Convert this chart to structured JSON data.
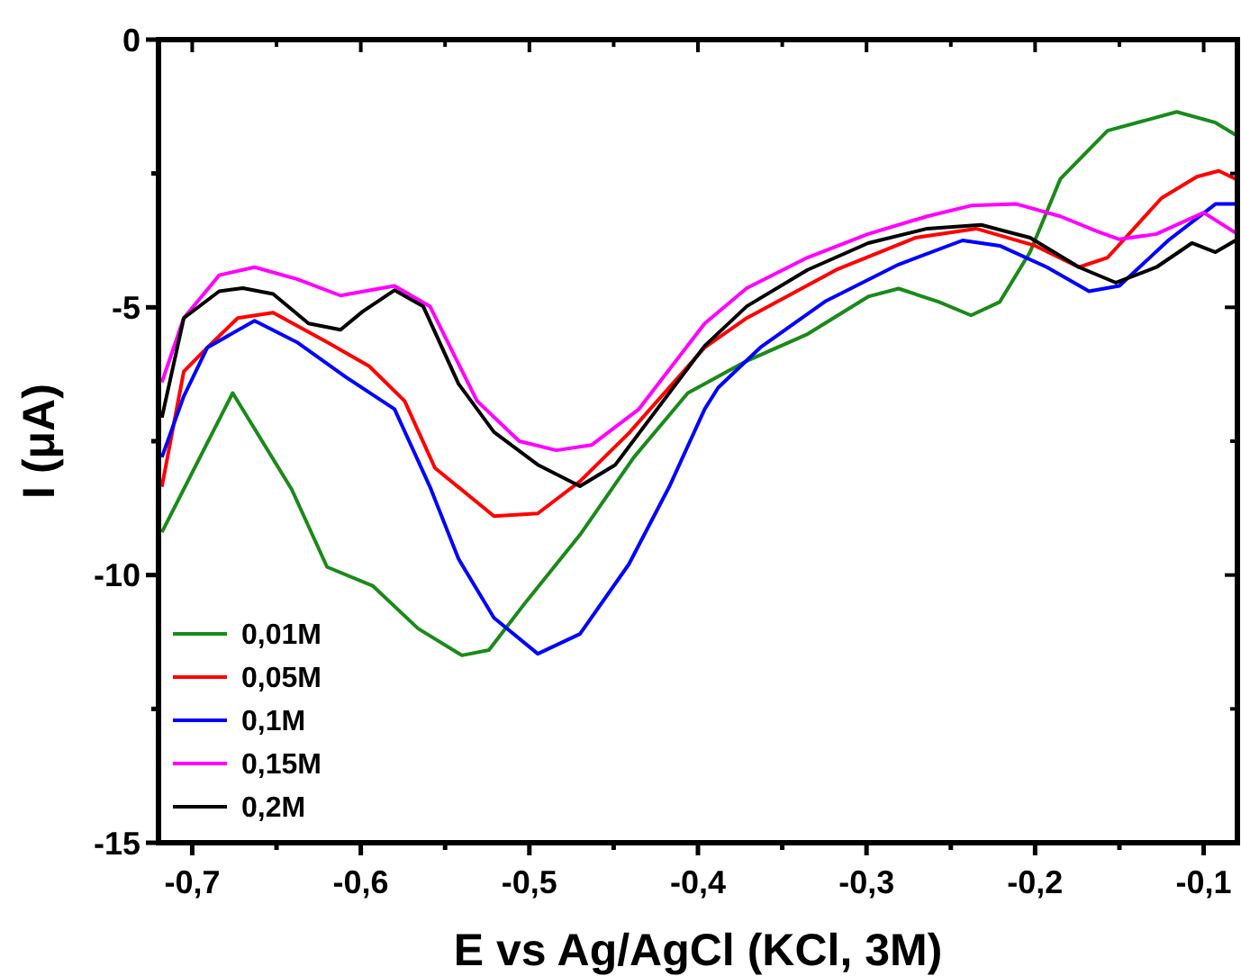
{
  "chart_data": {
    "type": "line",
    "xlabel": "E vs Ag/AgCl (KCl, 3M)",
    "ylabel": "I (μA)",
    "xlim": [
      -0.72,
      -0.08
    ],
    "ylim": [
      -15,
      0
    ],
    "xticks": [
      {
        "value": -0.7,
        "label": "-0,7"
      },
      {
        "value": -0.65,
        "label": null
      },
      {
        "value": -0.6,
        "label": "-0,6"
      },
      {
        "value": -0.55,
        "label": null
      },
      {
        "value": -0.5,
        "label": "-0,5"
      },
      {
        "value": -0.45,
        "label": null
      },
      {
        "value": -0.4,
        "label": "-0,4"
      },
      {
        "value": -0.35,
        "label": null
      },
      {
        "value": -0.3,
        "label": "-0,3"
      },
      {
        "value": -0.25,
        "label": null
      },
      {
        "value": -0.2,
        "label": "-0,2"
      },
      {
        "value": -0.15,
        "label": null
      },
      {
        "value": -0.1,
        "label": "-0,1"
      }
    ],
    "yticks": [
      -15,
      {
        "value": -12.5,
        "label": null
      },
      -10,
      {
        "value": -7.5,
        "label": null
      },
      -5,
      {
        "value": -2.5,
        "label": null
      },
      0
    ],
    "grid": false,
    "legend": "bottom left",
    "marker": "none",
    "line_style": "solid",
    "series": [
      {
        "name": "0,01M",
        "color": "#1a8a1a",
        "x": [
          -0.718,
          -0.676,
          -0.641,
          -0.62,
          -0.593,
          -0.566,
          -0.54,
          -0.524,
          -0.502,
          -0.47,
          -0.438,
          -0.406,
          -0.371,
          -0.335,
          -0.299,
          -0.281,
          -0.257,
          -0.238,
          -0.221,
          -0.203,
          -0.185,
          -0.157,
          -0.116,
          -0.093,
          -0.08
        ],
        "values": [
          -9.2,
          -6.6,
          -8.4,
          -9.85,
          -10.2,
          -11.0,
          -11.5,
          -11.4,
          -10.5,
          -9.25,
          -7.8,
          -6.6,
          -6.0,
          -5.5,
          -4.8,
          -4.65,
          -4.9,
          -5.15,
          -4.9,
          -3.97,
          -2.6,
          -1.7,
          -1.35,
          -1.55,
          -1.8
        ]
      },
      {
        "name": "0,05M",
        "color": "#ff0000",
        "x": [
          -0.718,
          -0.705,
          -0.691,
          -0.673,
          -0.652,
          -0.62,
          -0.595,
          -0.574,
          -0.556,
          -0.521,
          -0.495,
          -0.47,
          -0.441,
          -0.396,
          -0.371,
          -0.318,
          -0.271,
          -0.235,
          -0.2,
          -0.174,
          -0.157,
          -0.125,
          -0.104,
          -0.091,
          -0.08
        ],
        "values": [
          -8.35,
          -6.2,
          -5.75,
          -5.2,
          -5.1,
          -5.65,
          -6.1,
          -6.75,
          -8.0,
          -8.9,
          -8.85,
          -8.25,
          -7.35,
          -5.75,
          -5.2,
          -4.3,
          -3.7,
          -3.53,
          -3.85,
          -4.25,
          -4.07,
          -2.96,
          -2.56,
          -2.45,
          -2.62
        ]
      },
      {
        "name": "0,1M",
        "color": "#0000ff",
        "x": [
          -0.718,
          -0.705,
          -0.691,
          -0.663,
          -0.638,
          -0.609,
          -0.58,
          -0.559,
          -0.542,
          -0.521,
          -0.495,
          -0.47,
          -0.441,
          -0.417,
          -0.396,
          -0.388,
          -0.363,
          -0.324,
          -0.281,
          -0.243,
          -0.221,
          -0.193,
          -0.168,
          -0.15,
          -0.121,
          -0.093,
          -0.08
        ],
        "values": [
          -7.8,
          -6.66,
          -5.75,
          -5.25,
          -5.65,
          -6.3,
          -6.9,
          -8.35,
          -9.7,
          -10.8,
          -11.47,
          -11.1,
          -9.8,
          -8.35,
          -6.9,
          -6.5,
          -5.75,
          -4.88,
          -4.2,
          -3.75,
          -3.85,
          -4.25,
          -4.7,
          -4.6,
          -3.75,
          -3.07,
          -3.07
        ]
      },
      {
        "name": "0,15M",
        "color": "#ff00ff",
        "x": [
          -0.718,
          -0.705,
          -0.684,
          -0.663,
          -0.638,
          -0.612,
          -0.58,
          -0.559,
          -0.531,
          -0.506,
          -0.484,
          -0.463,
          -0.435,
          -0.396,
          -0.371,
          -0.335,
          -0.299,
          -0.264,
          -0.238,
          -0.211,
          -0.185,
          -0.164,
          -0.15,
          -0.128,
          -0.1,
          -0.08
        ],
        "values": [
          -6.4,
          -5.2,
          -4.4,
          -4.25,
          -4.47,
          -4.78,
          -4.6,
          -4.98,
          -6.75,
          -7.5,
          -7.67,
          -7.57,
          -6.9,
          -5.3,
          -4.64,
          -4.07,
          -3.63,
          -3.3,
          -3.1,
          -3.07,
          -3.3,
          -3.57,
          -3.73,
          -3.63,
          -3.23,
          -3.63
        ]
      },
      {
        "name": "0,2M",
        "color": "#000000",
        "x": [
          -0.718,
          -0.705,
          -0.684,
          -0.67,
          -0.652,
          -0.631,
          -0.612,
          -0.599,
          -0.58,
          -0.563,
          -0.542,
          -0.521,
          -0.495,
          -0.47,
          -0.449,
          -0.396,
          -0.371,
          -0.335,
          -0.299,
          -0.264,
          -0.232,
          -0.203,
          -0.174,
          -0.152,
          -0.128,
          -0.107,
          -0.093,
          -0.08
        ],
        "values": [
          -7.06,
          -5.2,
          -4.7,
          -4.64,
          -4.75,
          -5.3,
          -5.42,
          -5.08,
          -4.68,
          -4.98,
          -6.43,
          -7.33,
          -7.94,
          -8.34,
          -7.94,
          -5.72,
          -4.98,
          -4.3,
          -3.8,
          -3.53,
          -3.46,
          -3.7,
          -4.25,
          -4.54,
          -4.25,
          -3.8,
          -3.97,
          -3.73
        ]
      }
    ]
  }
}
